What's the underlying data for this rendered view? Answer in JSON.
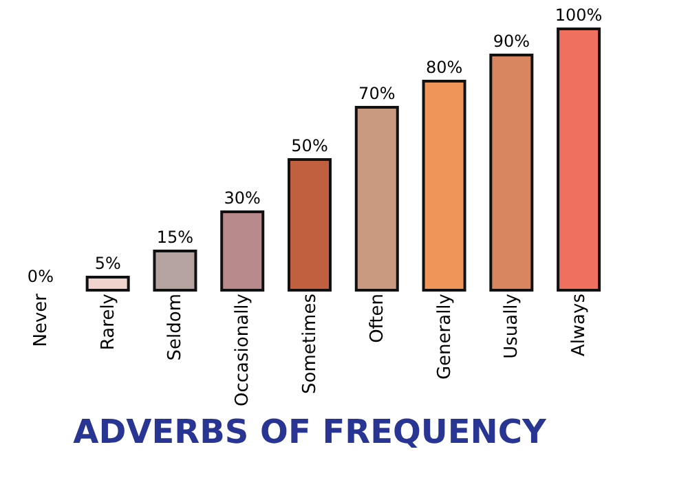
{
  "chart_data": {
    "type": "bar",
    "title": "ADVERBS OF FREQUENCY",
    "categories": [
      "Never",
      "Rarely",
      "Seldom",
      "Occasionally",
      "Sometimes",
      "Often",
      "Generally",
      "Usually",
      "Always"
    ],
    "values": [
      0,
      5,
      15,
      30,
      50,
      70,
      80,
      90,
      100
    ],
    "value_labels": [
      "0%",
      "5%",
      "15%",
      "30%",
      "50%",
      "70%",
      "80%",
      "90%",
      "100%"
    ],
    "colors": [
      "#e8c8c4",
      "#efd3cc",
      "#b5a39f",
      "#b98a8c",
      "#c0603e",
      "#c99a80",
      "#f0955a",
      "#d88660",
      "#f07060"
    ],
    "tick_labels": "x",
    "grid": false
  }
}
